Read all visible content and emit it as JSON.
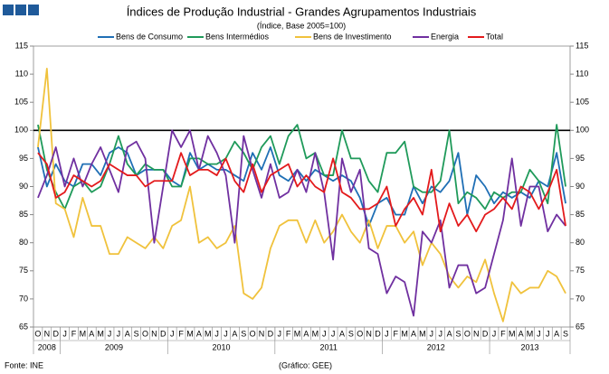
{
  "chart_data": {
    "type": "line",
    "title": "Índices de Produção Industrial - Grandes Agrupamentos Industriais",
    "subtitle": "(Índice, Base 2005=100)",
    "categories": [
      "O",
      "N",
      "D",
      "J",
      "F",
      "M",
      "A",
      "M",
      "J",
      "J",
      "A",
      "S",
      "O",
      "N",
      "D",
      "J",
      "F",
      "M",
      "A",
      "M",
      "J",
      "J",
      "A",
      "S",
      "O",
      "N",
      "D",
      "J",
      "F",
      "M",
      "A",
      "M",
      "J",
      "J",
      "A",
      "S",
      "O",
      "N",
      "D",
      "J",
      "F",
      "M",
      "A",
      "M",
      "J",
      "J",
      "A",
      "S",
      "O",
      "N",
      "D",
      "J",
      "F",
      "M",
      "A",
      "M",
      "J",
      "J",
      "A",
      "S"
    ],
    "year_labels": [
      "2008",
      "2009",
      "2010",
      "2011",
      "2012",
      "2013"
    ],
    "series": [
      {
        "name": "Bens de Consumo",
        "color": "#1f6fb5",
        "values": [
          97,
          90,
          94,
          91,
          90,
          94,
          94,
          92,
          96,
          97,
          96,
          92,
          93,
          93,
          93,
          91,
          90,
          96,
          93,
          94,
          93,
          93,
          92,
          91,
          96,
          93,
          97,
          92,
          91,
          93,
          91,
          93,
          92,
          91,
          92,
          91,
          88,
          83,
          87,
          88,
          85,
          85,
          90,
          87,
          90,
          89,
          91,
          96,
          85,
          92,
          90,
          87,
          89,
          88,
          89,
          88,
          91,
          90,
          96,
          87
        ]
      },
      {
        "name": "Bens Intermédios",
        "color": "#1f9a5a",
        "values": [
          101,
          93,
          89,
          86,
          90,
          91,
          89,
          90,
          94,
          99,
          94,
          92,
          94,
          93,
          93,
          90,
          90,
          95,
          95,
          94,
          94,
          95,
          98,
          96,
          93,
          97,
          99,
          94,
          99,
          101,
          95,
          96,
          92,
          92,
          100,
          95,
          95,
          91,
          89,
          96,
          96,
          98,
          90,
          89,
          89,
          91,
          100,
          87,
          89,
          88,
          86,
          89,
          88,
          89,
          89,
          93,
          91,
          87,
          101,
          90
        ]
      },
      {
        "name": "Bens de Investimento",
        "color": "#f0c23c",
        "values": [
          97,
          111,
          87,
          86,
          81,
          88,
          83,
          83,
          78,
          78,
          81,
          80,
          79,
          81,
          79,
          83,
          84,
          90,
          80,
          81,
          79,
          80,
          83,
          71,
          70,
          72,
          79,
          83,
          84,
          84,
          80,
          84,
          80,
          82,
          85,
          82,
          80,
          84,
          79,
          83,
          83,
          80,
          82,
          76,
          80,
          78,
          74,
          72,
          74,
          73,
          77,
          71,
          66,
          73,
          71,
          72,
          72,
          75,
          74,
          71
        ]
      },
      {
        "name": "Energia",
        "color": "#7030a0",
        "values": [
          88,
          92,
          97,
          90,
          95,
          90,
          94,
          97,
          93,
          89,
          97,
          98,
          95,
          80,
          90,
          100,
          97,
          100,
          93,
          99,
          96,
          92,
          80,
          99,
          93,
          88,
          94,
          88,
          89,
          93,
          89,
          96,
          89,
          77,
          95,
          89,
          93,
          79,
          78,
          71,
          74,
          73,
          67,
          82,
          80,
          84,
          72,
          76,
          76,
          71,
          72,
          78,
          84,
          95,
          83,
          90,
          90,
          82,
          85,
          83
        ]
      },
      {
        "name": "Total",
        "color": "#e31a1c",
        "values": [
          96,
          94,
          88,
          89,
          92,
          91,
          90,
          91,
          94,
          93,
          92,
          92,
          90,
          91,
          91,
          91,
          96,
          92,
          93,
          93,
          92,
          95,
          91,
          89,
          94,
          89,
          92,
          93,
          94,
          90,
          92,
          90,
          89,
          95,
          89,
          88,
          86,
          86,
          87,
          90,
          83,
          86,
          88,
          85,
          93,
          82,
          87,
          83,
          85,
          82,
          85,
          86,
          88,
          86,
          90,
          89,
          86,
          89,
          93,
          83
        ]
      }
    ],
    "ylim": [
      65,
      115
    ],
    "yticks": [
      65,
      70,
      75,
      80,
      85,
      90,
      95,
      100,
      105,
      110,
      115
    ],
    "y2lim": [
      65,
      115
    ],
    "y2ticks": [
      65,
      70,
      75,
      80,
      85,
      90,
      95,
      100,
      105,
      110,
      115
    ],
    "reference_line": 100,
    "grid": false,
    "source": "Fonte: INE",
    "credit": "(Gráfico: GEE)"
  }
}
